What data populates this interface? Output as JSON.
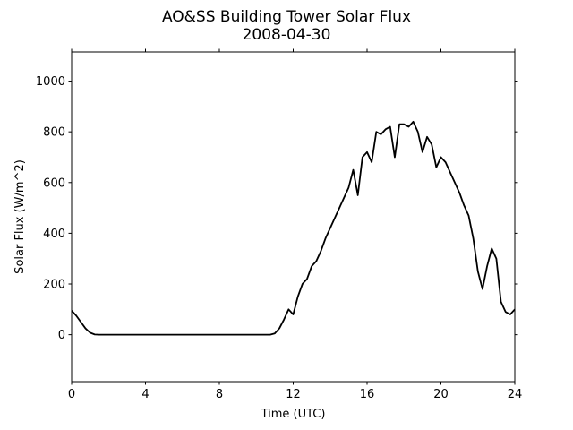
{
  "chart_data": {
    "type": "line",
    "title": "AO&SS Building Tower Solar Flux",
    "subtitle": "2008-04-30",
    "x_label": "Time (UTC)",
    "y_label": "Solar Flux (W/m^2)",
    "color": "#000000",
    "x": [
      0,
      0.25,
      0.5,
      0.75,
      1,
      1.25,
      1.5,
      1.75,
      2,
      2.25,
      2.5,
      2.75,
      3,
      3.25,
      3.5,
      3.75,
      4,
      4.25,
      4.5,
      4.75,
      5,
      5.25,
      5.5,
      5.75,
      6,
      6.25,
      6.5,
      6.75,
      7,
      7.25,
      7.5,
      7.75,
      8,
      8.25,
      8.5,
      8.75,
      9,
      9.25,
      9.5,
      9.75,
      10,
      10.25,
      10.5,
      10.75,
      11,
      11.25,
      11.5,
      11.75,
      12,
      12.25,
      12.5,
      12.75,
      13,
      13.25,
      13.5,
      13.75,
      14,
      14.25,
      14.5,
      14.75,
      15,
      15.25,
      15.5,
      15.75,
      16,
      16.25,
      16.5,
      16.75,
      17,
      17.25,
      17.5,
      17.75,
      18,
      18.25,
      18.5,
      18.75,
      19,
      19.25,
      19.5,
      19.75,
      20,
      20.25,
      20.5,
      20.75,
      21,
      21.25,
      21.5,
      21.75,
      22,
      22.25,
      22.5,
      22.75,
      23,
      23.25,
      23.5,
      23.75,
      24
    ],
    "values": [
      95,
      75,
      50,
      25,
      8,
      1,
      0,
      0,
      0,
      0,
      0,
      0,
      0,
      0,
      0,
      0,
      0,
      0,
      0,
      0,
      0,
      0,
      0,
      0,
      0,
      0,
      0,
      0,
      0,
      0,
      0,
      0,
      0,
      0,
      0,
      0,
      0,
      0,
      0,
      0,
      0,
      0,
      0,
      0,
      5,
      25,
      60,
      100,
      80,
      150,
      200,
      220,
      270,
      290,
      330,
      380,
      420,
      460,
      500,
      540,
      580,
      650,
      550,
      700,
      720,
      680,
      800,
      790,
      810,
      820,
      700,
      830,
      830,
      820,
      840,
      800,
      720,
      780,
      750,
      660,
      700,
      680,
      640,
      600,
      560,
      510,
      470,
      380,
      250,
      180,
      270,
      340,
      300,
      130,
      90,
      80,
      100
    ],
    "xlim": [
      0,
      24
    ],
    "xticks": [
      0,
      4,
      8,
      12,
      16,
      20,
      24
    ],
    "ylim": [
      -185,
      1115
    ],
    "yticks": [
      0,
      200,
      400,
      600,
      800,
      1000
    ]
  }
}
